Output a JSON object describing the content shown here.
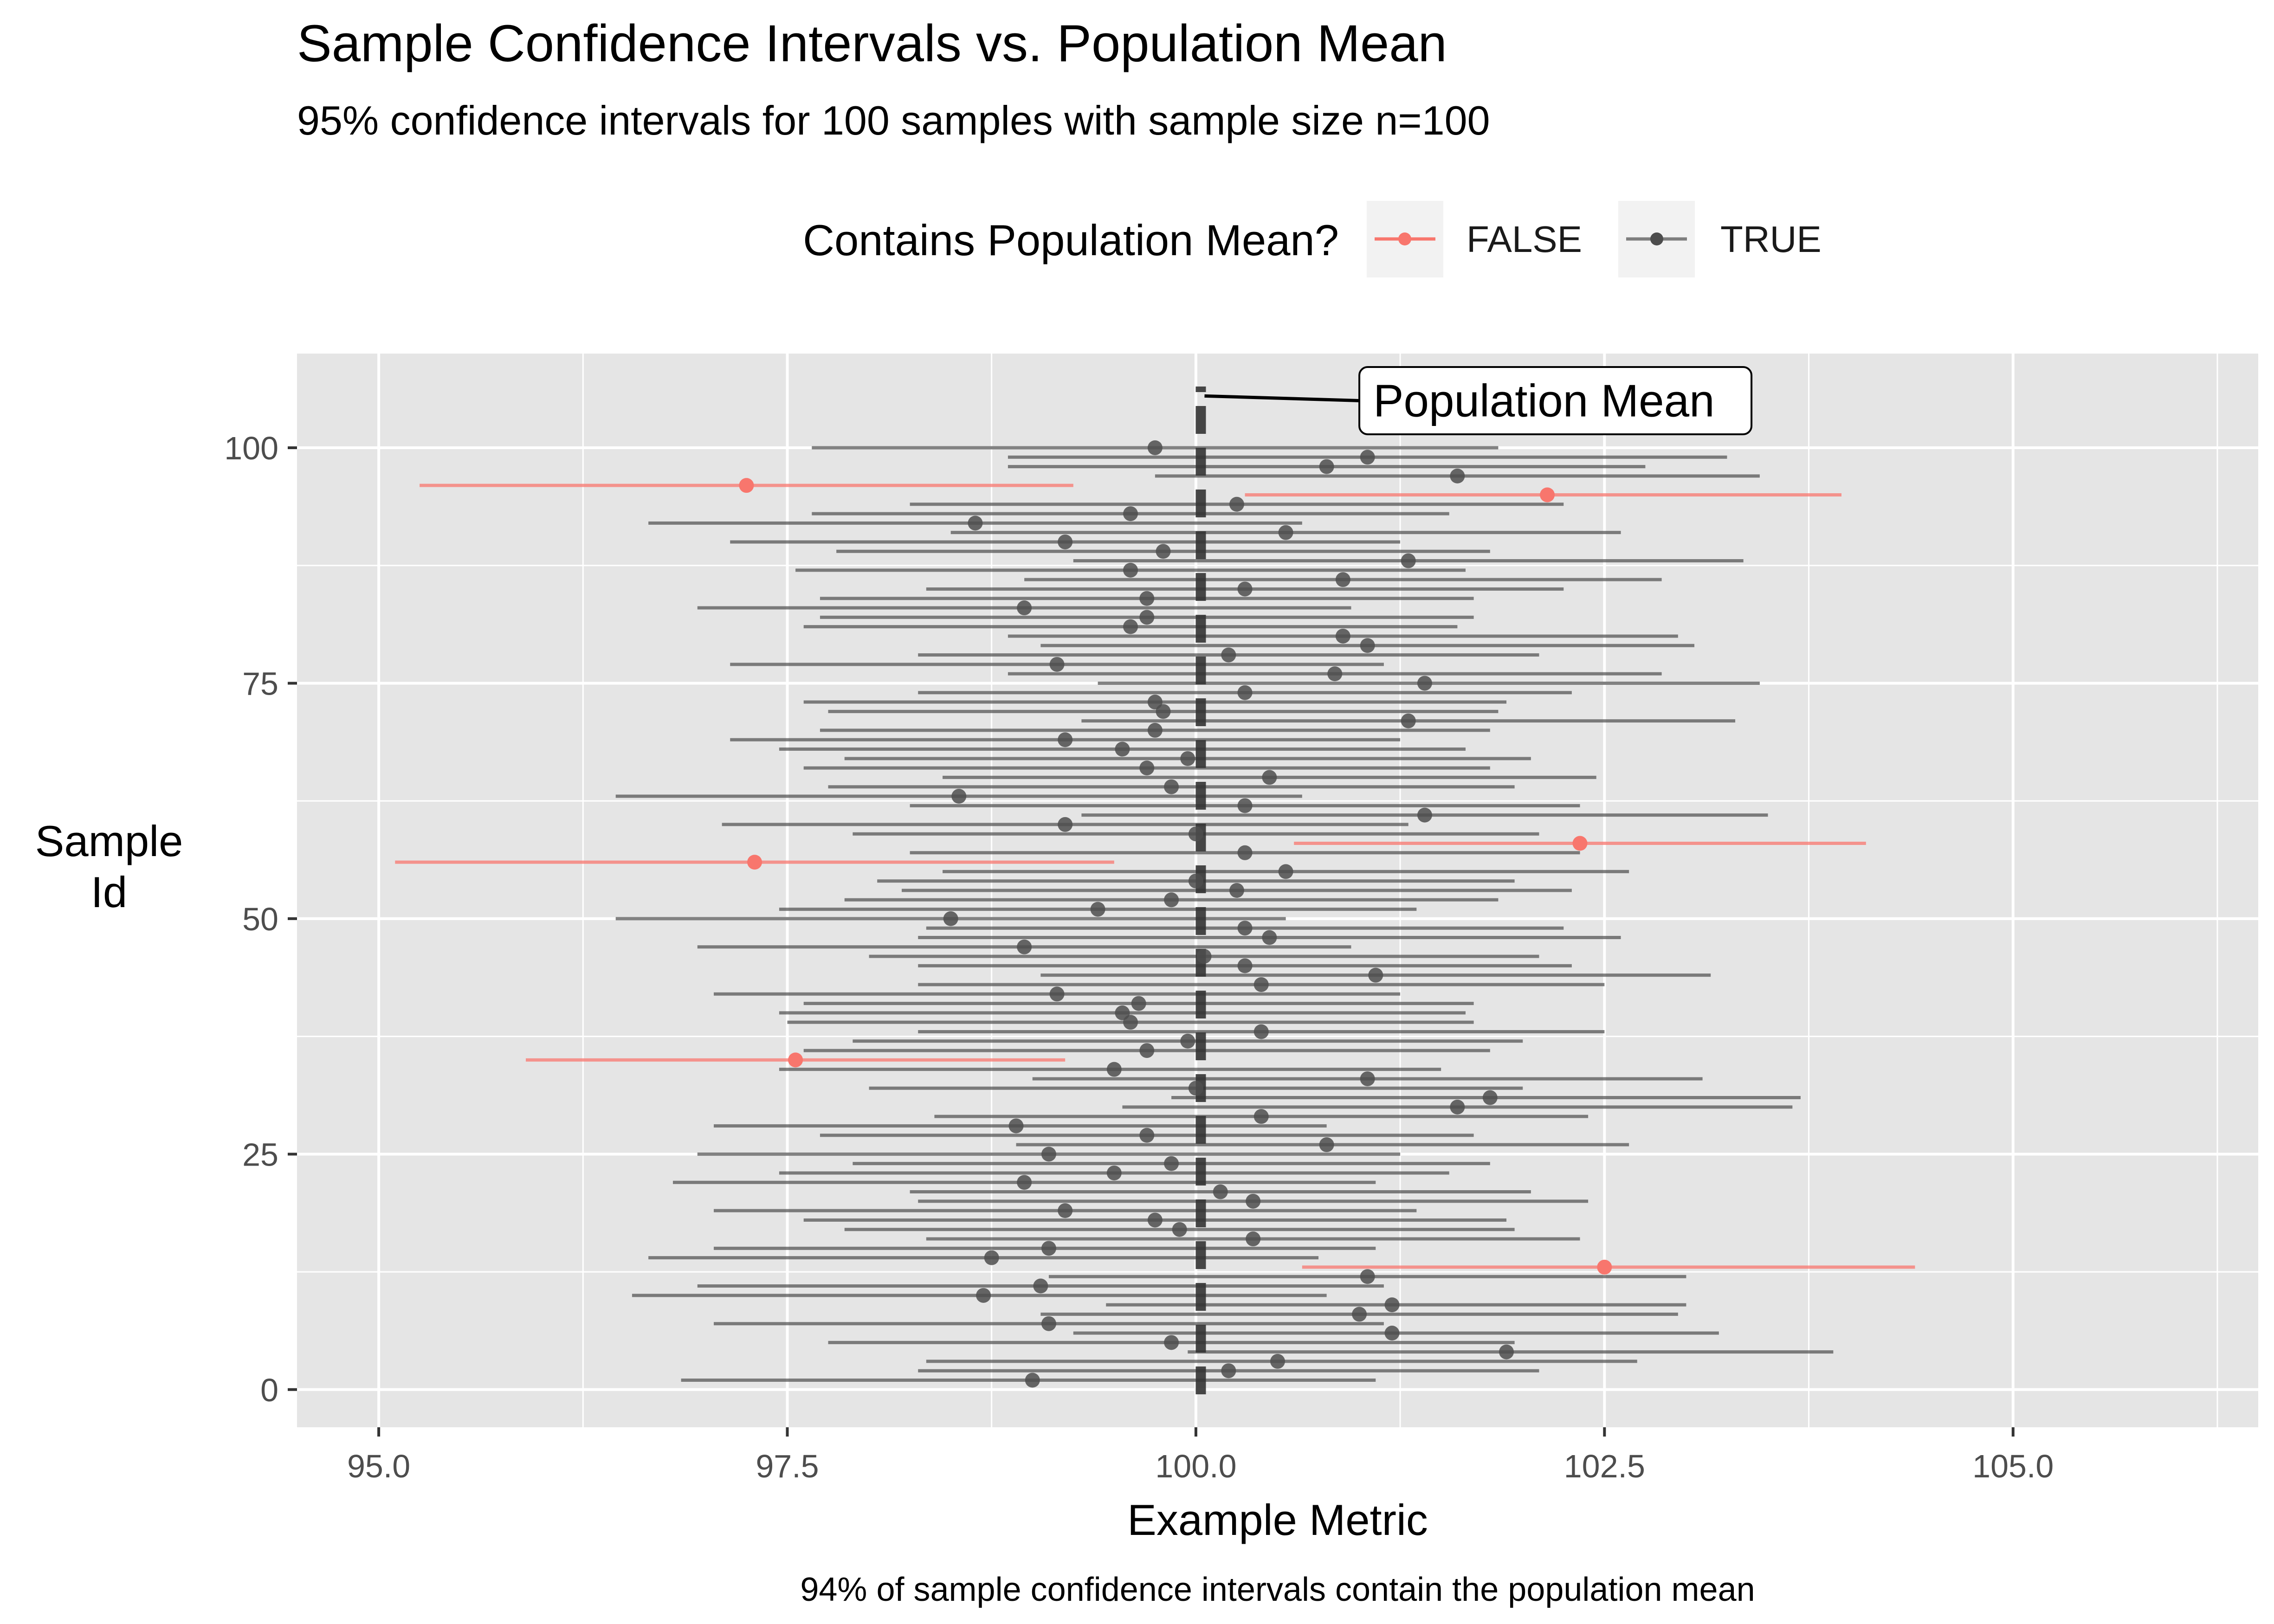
{
  "chart_data": {
    "type": "errorbar",
    "title": "Sample Confidence Intervals vs. Population Mean",
    "subtitle": "95% confidence intervals for 100 samples with sample size n=100",
    "caption": "94% of sample confidence intervals contain the population mean",
    "xlabel": "Example Metric",
    "ylabel": "Sample\nId",
    "xlim": [
      94.5,
      106.5
    ],
    "ylim": [
      -4,
      110
    ],
    "x_ticks": [
      95.0,
      97.5,
      100.0,
      102.5,
      105.0
    ],
    "x_tick_labels": [
      "95.0",
      "97.5",
      "100.0",
      "102.5",
      "105.0"
    ],
    "y_ticks": [
      0,
      25,
      50,
      75,
      100
    ],
    "y_tick_labels": [
      "0",
      "25",
      "50",
      "75",
      "100"
    ],
    "grid": true,
    "population_mean": 100.03,
    "annotation": {
      "text": "Population Mean",
      "x": 101.0,
      "y": 105
    },
    "legend": {
      "title": "Contains Population Mean?",
      "position": "top",
      "items": [
        {
          "label": "FALSE",
          "color": "#F8766D"
        },
        {
          "label": "TRUE",
          "color": "#4D4D4D"
        }
      ]
    },
    "colors": {
      "false": "#F8766D",
      "true": "#4D4D4D",
      "panel": "#E5E5E5",
      "grid": "#FFFFFF"
    },
    "intervals": [
      {
        "id": 1,
        "mean": 99.0,
        "lower": 96.85,
        "upper": 101.1,
        "contains": true
      },
      {
        "id": 2,
        "mean": 100.2,
        "lower": 98.3,
        "upper": 102.1,
        "contains": true
      },
      {
        "id": 3,
        "mean": 100.5,
        "lower": 98.35,
        "upper": 102.7,
        "contains": true
      },
      {
        "id": 4,
        "mean": 101.9,
        "lower": 99.95,
        "upper": 103.9,
        "contains": true
      },
      {
        "id": 5,
        "mean": 99.85,
        "lower": 97.75,
        "upper": 101.95,
        "contains": true
      },
      {
        "id": 6,
        "mean": 101.2,
        "lower": 99.25,
        "upper": 103.2,
        "contains": true
      },
      {
        "id": 7,
        "mean": 99.1,
        "lower": 97.05,
        "upper": 101.15,
        "contains": true
      },
      {
        "id": 8,
        "mean": 101.0,
        "lower": 99.05,
        "upper": 102.95,
        "contains": true
      },
      {
        "id": 9,
        "mean": 101.2,
        "lower": 99.45,
        "upper": 103.0,
        "contains": true
      },
      {
        "id": 10,
        "mean": 98.7,
        "lower": 96.55,
        "upper": 100.8,
        "contains": true
      },
      {
        "id": 11,
        "mean": 99.05,
        "lower": 96.95,
        "upper": 101.15,
        "contains": true
      },
      {
        "id": 12,
        "mean": 101.05,
        "lower": 99.1,
        "upper": 103.0,
        "contains": true
      },
      {
        "id": 13,
        "mean": 102.5,
        "lower": 100.65,
        "upper": 104.4,
        "contains": false
      },
      {
        "id": 14,
        "mean": 98.75,
        "lower": 96.65,
        "upper": 100.75,
        "contains": true
      },
      {
        "id": 15,
        "mean": 99.1,
        "lower": 97.05,
        "upper": 101.1,
        "contains": true
      },
      {
        "id": 16,
        "mean": 100.35,
        "lower": 98.35,
        "upper": 102.35,
        "contains": true
      },
      {
        "id": 17,
        "mean": 99.9,
        "lower": 97.85,
        "upper": 101.95,
        "contains": true
      },
      {
        "id": 18,
        "mean": 99.75,
        "lower": 97.6,
        "upper": 101.9,
        "contains": true
      },
      {
        "id": 19,
        "mean": 99.2,
        "lower": 97.05,
        "upper": 101.35,
        "contains": true
      },
      {
        "id": 20,
        "mean": 100.35,
        "lower": 98.3,
        "upper": 102.4,
        "contains": true
      },
      {
        "id": 21,
        "mean": 100.15,
        "lower": 98.25,
        "upper": 102.05,
        "contains": true
      },
      {
        "id": 22,
        "mean": 98.95,
        "lower": 96.8,
        "upper": 101.1,
        "contains": true
      },
      {
        "id": 23,
        "mean": 99.5,
        "lower": 97.45,
        "upper": 101.55,
        "contains": true
      },
      {
        "id": 24,
        "mean": 99.85,
        "lower": 97.9,
        "upper": 101.8,
        "contains": true
      },
      {
        "id": 25,
        "mean": 99.1,
        "lower": 96.95,
        "upper": 101.25,
        "contains": true
      },
      {
        "id": 26,
        "mean": 100.8,
        "lower": 98.9,
        "upper": 102.65,
        "contains": true
      },
      {
        "id": 27,
        "mean": 99.7,
        "lower": 97.7,
        "upper": 101.7,
        "contains": true
      },
      {
        "id": 28,
        "mean": 98.9,
        "lower": 97.05,
        "upper": 100.8,
        "contains": true
      },
      {
        "id": 29,
        "mean": 100.4,
        "lower": 98.4,
        "upper": 102.4,
        "contains": true
      },
      {
        "id": 30,
        "mean": 101.6,
        "lower": 99.55,
        "upper": 103.65,
        "contains": true
      },
      {
        "id": 31,
        "mean": 101.8,
        "lower": 99.85,
        "upper": 103.7,
        "contains": true
      },
      {
        "id": 32,
        "mean": 100.0,
        "lower": 98.0,
        "upper": 102.0,
        "contains": true
      },
      {
        "id": 33,
        "mean": 101.05,
        "lower": 99.0,
        "upper": 103.1,
        "contains": true
      },
      {
        "id": 34,
        "mean": 99.5,
        "lower": 97.45,
        "upper": 101.5,
        "contains": true
      },
      {
        "id": 35,
        "mean": 97.55,
        "lower": 95.9,
        "upper": 99.2,
        "contains": false
      },
      {
        "id": 36,
        "mean": 99.7,
        "lower": 97.6,
        "upper": 101.8,
        "contains": true
      },
      {
        "id": 37,
        "mean": 99.95,
        "lower": 97.9,
        "upper": 102.0,
        "contains": true
      },
      {
        "id": 38,
        "mean": 100.4,
        "lower": 98.3,
        "upper": 102.5,
        "contains": true
      },
      {
        "id": 39,
        "mean": 99.6,
        "lower": 97.5,
        "upper": 101.7,
        "contains": true
      },
      {
        "id": 40,
        "mean": 99.55,
        "lower": 97.45,
        "upper": 101.65,
        "contains": true
      },
      {
        "id": 41,
        "mean": 99.65,
        "lower": 97.6,
        "upper": 101.7,
        "contains": true
      },
      {
        "id": 42,
        "mean": 99.15,
        "lower": 97.05,
        "upper": 101.25,
        "contains": true
      },
      {
        "id": 43,
        "mean": 100.4,
        "lower": 98.3,
        "upper": 102.5,
        "contains": true
      },
      {
        "id": 44,
        "mean": 101.1,
        "lower": 99.05,
        "upper": 103.15,
        "contains": true
      },
      {
        "id": 45,
        "mean": 100.3,
        "lower": 98.3,
        "upper": 102.3,
        "contains": true
      },
      {
        "id": 46,
        "mean": 100.05,
        "lower": 98.0,
        "upper": 102.1,
        "contains": true
      },
      {
        "id": 47,
        "mean": 98.95,
        "lower": 96.95,
        "upper": 100.95,
        "contains": true
      },
      {
        "id": 48,
        "mean": 100.45,
        "lower": 98.3,
        "upper": 102.6,
        "contains": true
      },
      {
        "id": 49,
        "mean": 100.3,
        "lower": 98.35,
        "upper": 102.25,
        "contains": true
      },
      {
        "id": 50,
        "mean": 98.5,
        "lower": 96.45,
        "upper": 100.55,
        "contains": true
      },
      {
        "id": 51,
        "mean": 99.4,
        "lower": 97.45,
        "upper": 101.35,
        "contains": true
      },
      {
        "id": 52,
        "mean": 99.85,
        "lower": 97.85,
        "upper": 101.85,
        "contains": true
      },
      {
        "id": 53,
        "mean": 100.25,
        "lower": 98.2,
        "upper": 102.3,
        "contains": true
      },
      {
        "id": 54,
        "mean": 100.0,
        "lower": 98.05,
        "upper": 101.95,
        "contains": true
      },
      {
        "id": 55,
        "mean": 100.55,
        "lower": 98.45,
        "upper": 102.65,
        "contains": true
      },
      {
        "id": 56,
        "mean": 97.3,
        "lower": 95.1,
        "upper": 99.5,
        "contains": false
      },
      {
        "id": 57,
        "mean": 100.3,
        "lower": 98.25,
        "upper": 102.35,
        "contains": true
      },
      {
        "id": 58,
        "mean": 102.35,
        "lower": 100.6,
        "upper": 104.1,
        "contains": false
      },
      {
        "id": 59,
        "mean": 100.0,
        "lower": 97.9,
        "upper": 102.1,
        "contains": true
      },
      {
        "id": 60,
        "mean": 99.2,
        "lower": 97.1,
        "upper": 101.3,
        "contains": true
      },
      {
        "id": 61,
        "mean": 101.4,
        "lower": 99.3,
        "upper": 103.5,
        "contains": true
      },
      {
        "id": 62,
        "mean": 100.3,
        "lower": 98.25,
        "upper": 102.35,
        "contains": true
      },
      {
        "id": 63,
        "mean": 98.55,
        "lower": 96.45,
        "upper": 100.65,
        "contains": true
      },
      {
        "id": 64,
        "mean": 99.85,
        "lower": 97.75,
        "upper": 101.95,
        "contains": true
      },
      {
        "id": 65,
        "mean": 100.45,
        "lower": 98.45,
        "upper": 102.45,
        "contains": true
      },
      {
        "id": 66,
        "mean": 99.7,
        "lower": 97.6,
        "upper": 101.8,
        "contains": true
      },
      {
        "id": 67,
        "mean": 99.95,
        "lower": 97.85,
        "upper": 102.05,
        "contains": true
      },
      {
        "id": 68,
        "mean": 99.55,
        "lower": 97.45,
        "upper": 101.65,
        "contains": true
      },
      {
        "id": 69,
        "mean": 99.2,
        "lower": 97.15,
        "upper": 101.25,
        "contains": true
      },
      {
        "id": 70,
        "mean": 99.75,
        "lower": 97.7,
        "upper": 101.8,
        "contains": true
      },
      {
        "id": 71,
        "mean": 101.3,
        "lower": 99.3,
        "upper": 103.3,
        "contains": true
      },
      {
        "id": 72,
        "mean": 99.8,
        "lower": 97.75,
        "upper": 101.85,
        "contains": true
      },
      {
        "id": 73,
        "mean": 99.75,
        "lower": 97.6,
        "upper": 101.9,
        "contains": true
      },
      {
        "id": 74,
        "mean": 100.3,
        "lower": 98.3,
        "upper": 102.3,
        "contains": true
      },
      {
        "id": 75,
        "mean": 101.4,
        "lower": 99.4,
        "upper": 103.45,
        "contains": true
      },
      {
        "id": 76,
        "mean": 100.85,
        "lower": 98.85,
        "upper": 102.85,
        "contains": true
      },
      {
        "id": 77,
        "mean": 99.15,
        "lower": 97.15,
        "upper": 101.15,
        "contains": true
      },
      {
        "id": 78,
        "mean": 100.2,
        "lower": 98.3,
        "upper": 102.1,
        "contains": true
      },
      {
        "id": 79,
        "mean": 101.05,
        "lower": 99.05,
        "upper": 103.05,
        "contains": true
      },
      {
        "id": 80,
        "mean": 100.9,
        "lower": 98.85,
        "upper": 102.95,
        "contains": true
      },
      {
        "id": 81,
        "mean": 99.6,
        "lower": 97.6,
        "upper": 101.6,
        "contains": true
      },
      {
        "id": 82,
        "mean": 99.7,
        "lower": 97.7,
        "upper": 101.7,
        "contains": true
      },
      {
        "id": 83,
        "mean": 98.95,
        "lower": 96.95,
        "upper": 100.95,
        "contains": true
      },
      {
        "id": 84,
        "mean": 99.7,
        "lower": 97.7,
        "upper": 101.7,
        "contains": true
      },
      {
        "id": 85,
        "mean": 100.3,
        "lower": 98.35,
        "upper": 102.25,
        "contains": true
      },
      {
        "id": 86,
        "mean": 100.9,
        "lower": 98.95,
        "upper": 102.85,
        "contains": true
      },
      {
        "id": 87,
        "mean": 99.6,
        "lower": 97.55,
        "upper": 101.65,
        "contains": true
      },
      {
        "id": 88,
        "mean": 101.3,
        "lower": 99.25,
        "upper": 103.35,
        "contains": true
      },
      {
        "id": 89,
        "mean": 99.8,
        "lower": 97.8,
        "upper": 101.8,
        "contains": true
      },
      {
        "id": 90,
        "mean": 99.2,
        "lower": 97.15,
        "upper": 101.25,
        "contains": true
      },
      {
        "id": 91,
        "mean": 100.55,
        "lower": 98.5,
        "upper": 102.6,
        "contains": true
      },
      {
        "id": 92,
        "mean": 98.65,
        "lower": 96.65,
        "upper": 100.65,
        "contains": true
      },
      {
        "id": 93,
        "mean": 99.6,
        "lower": 97.65,
        "upper": 101.55,
        "contains": true
      },
      {
        "id": 94,
        "mean": 100.25,
        "lower": 98.25,
        "upper": 102.25,
        "contains": true
      },
      {
        "id": 95,
        "mean": 102.15,
        "lower": 100.3,
        "upper": 103.95,
        "contains": false
      },
      {
        "id": 96,
        "mean": 97.25,
        "lower": 95.25,
        "upper": 99.25,
        "contains": false
      },
      {
        "id": 97,
        "mean": 101.6,
        "lower": 99.75,
        "upper": 103.45,
        "contains": true
      },
      {
        "id": 98,
        "mean": 100.8,
        "lower": 98.85,
        "upper": 102.75,
        "contains": true
      },
      {
        "id": 99,
        "mean": 101.05,
        "lower": 98.85,
        "upper": 103.25,
        "contains": true
      },
      {
        "id": 100,
        "mean": 99.75,
        "lower": 97.65,
        "upper": 101.85,
        "contains": true
      }
    ]
  }
}
